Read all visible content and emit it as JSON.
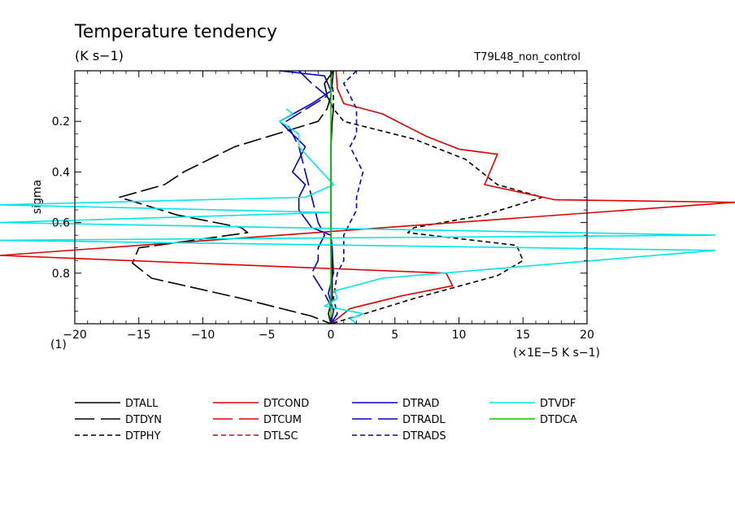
{
  "chart_data": {
    "type": "line",
    "title": "Temperature tendency",
    "subtitle": "(K s−1)",
    "run_label": "T79L48_non_control",
    "ylabel": "sigma",
    "x_unit_label": "(×1E−5 K s−1)",
    "y_scale_label": "(1)",
    "xlim": [
      -20,
      20
    ],
    "ylim": [
      0.0,
      1.0
    ],
    "y_inverted": true,
    "grid": false,
    "legend_position": "bottom",
    "x_ticks": [
      -20,
      -15,
      -10,
      -5,
      0,
      5,
      10,
      15,
      20
    ],
    "x_tick_labels": [
      "−20",
      "−15",
      "−10",
      "−5",
      "0",
      "5",
      "10",
      "15",
      "20"
    ],
    "y_ticks": [
      0.2,
      0.4,
      0.6,
      0.8
    ],
    "y_tick_labels": [
      "0.2",
      "0.4",
      "0.6",
      "0.8"
    ],
    "series": [
      {
        "name": "DTALL",
        "color": "#000000",
        "dash": "solid",
        "x": [
          0.2,
          -0.5,
          -0.3,
          0.2,
          0.1,
          0.0,
          0.0,
          0.0,
          0.0,
          0.1,
          0.1,
          -0.2,
          0.0
        ],
        "y": [
          0.0,
          0.05,
          0.1,
          0.15,
          0.2,
          0.3,
          0.5,
          0.6,
          0.7,
          0.8,
          0.9,
          0.96,
          1.0
        ]
      },
      {
        "name": "DTDYN",
        "color": "#000000",
        "dash": "longdash",
        "x": [
          0.2,
          0.0,
          -0.3,
          -1.0,
          -7.5,
          -11.5,
          -13.0,
          -16.5,
          -12.0,
          -7.0,
          -6.5,
          -15.0,
          -15.5,
          -14.0,
          -7.0,
          -1.5,
          0.0
        ],
        "y": [
          0.0,
          0.1,
          0.15,
          0.2,
          0.3,
          0.4,
          0.45,
          0.5,
          0.57,
          0.62,
          0.64,
          0.7,
          0.76,
          0.82,
          0.9,
          0.97,
          1.0
        ]
      },
      {
        "name": "DTPHY",
        "color": "#000000",
        "dash": "shortdash",
        "x": [
          0.0,
          0.2,
          0.2,
          1.0,
          6.5,
          10.5,
          13.0,
          16.5,
          12.0,
          6.5,
          6.0,
          14.5,
          15.0,
          13.0,
          6.5,
          2.0,
          0.0
        ],
        "y": [
          0.0,
          0.1,
          0.15,
          0.2,
          0.27,
          0.35,
          0.45,
          0.5,
          0.57,
          0.62,
          0.64,
          0.69,
          0.75,
          0.81,
          0.9,
          0.97,
          1.0
        ]
      },
      {
        "name": "DTCOND",
        "color": "#dd0000",
        "dash": "solid",
        "x": [
          0.4,
          0.5,
          1.0,
          4.0,
          7.5,
          10.0,
          13.0,
          12.0,
          17.5,
          35.0,
          -35.0,
          9.0,
          9.5,
          5.5,
          1.5,
          0.0
        ],
        "y": [
          0.0,
          0.07,
          0.13,
          0.17,
          0.26,
          0.31,
          0.33,
          0.45,
          0.51,
          0.52,
          0.73,
          0.8,
          0.85,
          0.89,
          0.94,
          1.0
        ]
      },
      {
        "name": "DTRAD",
        "color": "#0000cc",
        "dash": "solid",
        "x": [
          -4.0,
          -0.5,
          0.0,
          -1.5,
          -4.0,
          -2.0,
          -3.0,
          -2.0,
          -2.5,
          -2.5,
          -1.5,
          0.0,
          0.1,
          0.2,
          -0.2,
          0.2,
          0.0
        ],
        "y": [
          0.0,
          0.02,
          0.08,
          0.13,
          0.2,
          0.3,
          0.4,
          0.45,
          0.5,
          0.55,
          0.62,
          0.65,
          0.7,
          0.8,
          0.88,
          0.95,
          1.0
        ]
      },
      {
        "name": "DTRADL",
        "color": "#0000cc",
        "dash": "longdash",
        "x": [
          -2.5,
          -1.5,
          -0.3,
          -3.5,
          -2.5,
          -2.0,
          -1.5,
          -1.0,
          -0.5,
          -1.0,
          -1.0,
          -1.5,
          -0.5,
          0.0,
          0.5,
          0.0
        ],
        "y": [
          0.0,
          0.05,
          0.1,
          0.2,
          0.3,
          0.4,
          0.5,
          0.6,
          0.65,
          0.7,
          0.75,
          0.8,
          0.88,
          0.93,
          0.96,
          1.0
        ]
      },
      {
        "name": "DTRADS",
        "color": "#0000cc",
        "dash": "shortdash",
        "x": [
          2.0,
          1.0,
          2.0,
          2.0,
          1.5,
          2.5,
          2.0,
          2.0,
          1.5,
          1.0,
          1.0,
          0.5,
          0.2,
          0.5,
          0.0
        ],
        "y": [
          0.0,
          0.05,
          0.15,
          0.25,
          0.3,
          0.4,
          0.5,
          0.55,
          0.6,
          0.65,
          0.75,
          0.8,
          0.9,
          0.96,
          1.0
        ]
      },
      {
        "name": "DTVDF",
        "color": "#00e5e5",
        "dash": "solid",
        "x": [
          -3.5,
          -3.0,
          -4.0,
          -2.5,
          -2.5,
          0.2,
          -2.0,
          -27.0,
          0.0,
          -27.0,
          30.0,
          -27.0,
          30.0,
          4.0,
          0.3,
          0.5,
          -0.5,
          2.5,
          1.5,
          2.0
        ],
        "y": [
          0.15,
          0.17,
          0.2,
          0.25,
          0.3,
          0.45,
          0.5,
          0.53,
          0.56,
          0.6,
          0.65,
          0.67,
          0.71,
          0.82,
          0.87,
          0.9,
          0.93,
          0.96,
          0.98,
          1.0
        ]
      },
      {
        "name": "DTCUM",
        "color": "#dd0000",
        "dash": "longdash",
        "x": [],
        "y": []
      },
      {
        "name": "DTLSC",
        "color": "#dd0000",
        "dash": "shortdash",
        "x": [],
        "y": []
      },
      {
        "name": "DTDCA",
        "color": "#00cc00",
        "dash": "solid",
        "x": [
          0.0,
          0.0
        ],
        "y": [
          0.0,
          1.0
        ]
      }
    ],
    "legend": [
      {
        "label": "DTALL",
        "color": "#000000",
        "dash": "solid"
      },
      {
        "label": "DTDYN",
        "color": "#000000",
        "dash": "longdash"
      },
      {
        "label": "DTPHY",
        "color": "#000000",
        "dash": "shortdash"
      },
      {
        "label": "DTCOND",
        "color": "#dd0000",
        "dash": "solid"
      },
      {
        "label": "DTCUM",
        "color": "#dd0000",
        "dash": "longdash"
      },
      {
        "label": "DTLSC",
        "color": "#dd0000",
        "dash": "shortdash"
      },
      {
        "label": "DTRAD",
        "color": "#0000cc",
        "dash": "solid"
      },
      {
        "label": "DTRADL",
        "color": "#0000cc",
        "dash": "longdash"
      },
      {
        "label": "DTRADS",
        "color": "#0000cc",
        "dash": "shortdash"
      },
      {
        "label": "DTVDF",
        "color": "#00e5e5",
        "dash": "solid"
      },
      {
        "label": "DTDCA",
        "color": "#00cc00",
        "dash": "solid"
      }
    ]
  }
}
